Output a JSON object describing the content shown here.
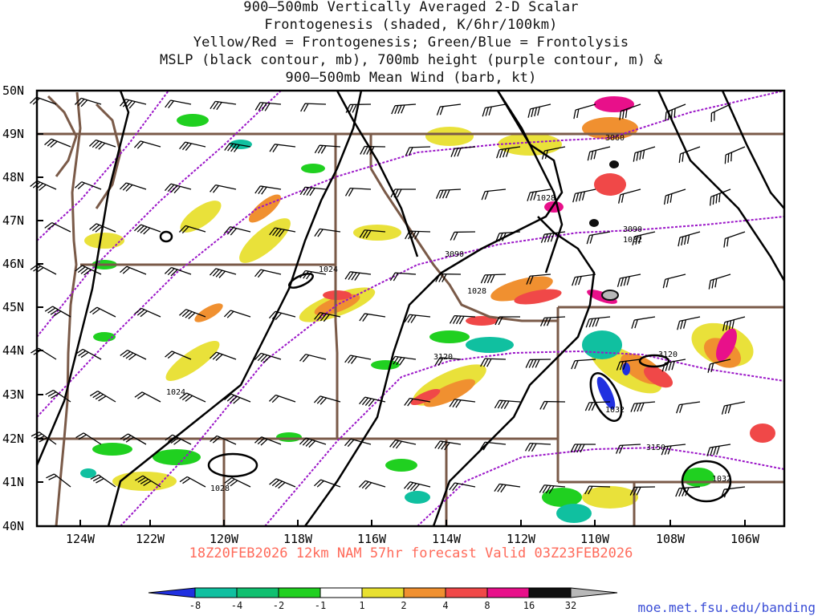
{
  "header": {
    "title_lines": [
      "900–500mb Vertically Averaged 2-D Scalar",
      "Frontogenesis (shaded, K/6hr/100km)",
      "Yellow/Red = Frontogenesis;  Green/Blue = Frontolysis",
      "MSLP (black contour, mb), 700mb height (purple contour, m) &",
      "900–500mb Mean Wind (barb, kt)"
    ]
  },
  "map": {
    "lat_labels": [
      "50N",
      "49N",
      "48N",
      "47N",
      "46N",
      "45N",
      "44N",
      "43N",
      "42N",
      "41N",
      "40N"
    ],
    "lon_labels": [
      "124W",
      "122W",
      "120W",
      "118W",
      "116W",
      "114W",
      "112W",
      "110W",
      "108W",
      "106W"
    ],
    "contour_labels": {
      "mslp": [
        "1024",
        "1024",
        "1028",
        "1028",
        "1028",
        "1032",
        "1032",
        "1032"
      ],
      "height700": [
        "3060",
        "3090",
        "3090",
        "3120",
        "3120",
        "3150"
      ]
    },
    "colors": {
      "frame": "#000000",
      "state_borders": "#7a5a48",
      "mslp_contour": "#000000",
      "height_contour": "#9b16c8",
      "barb": "#000000"
    }
  },
  "forecast_text": "18Z20FEB2026 12km NAM 57hr forecast Valid 03Z23FEB2026",
  "colorbar": {
    "labels": [
      "-8",
      "-4",
      "-2",
      "-1",
      "1",
      "2",
      "4",
      "8",
      "16",
      "32"
    ],
    "colors": [
      "#2030e0",
      "#10c0a0",
      "#10c070",
      "#20d020",
      "#ffffff",
      "#e8e030",
      "#f09030",
      "#f04848",
      "#e8108a",
      "#101010",
      "#b8b8b8"
    ]
  },
  "credit": "moe.met.fsu.edu/banding"
}
